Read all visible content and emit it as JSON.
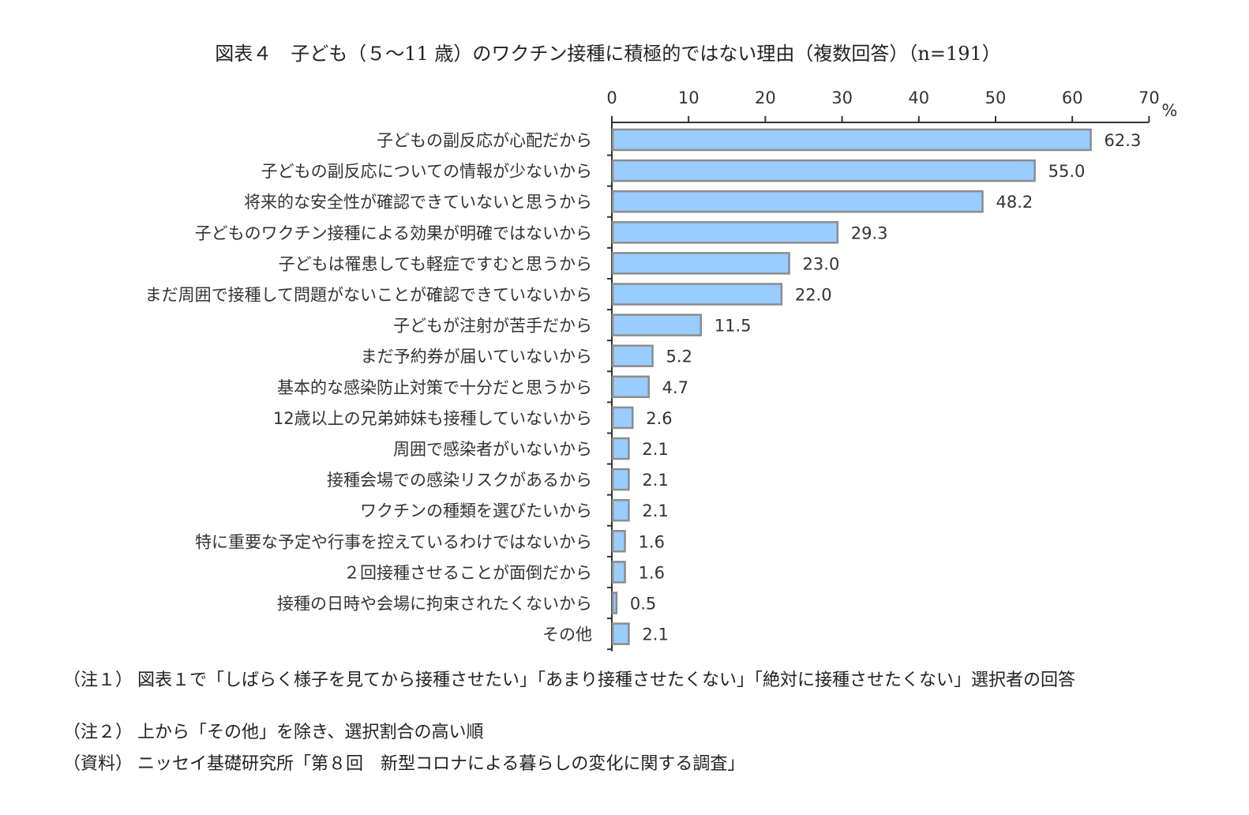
{
  "chart_data": {
    "type": "bar",
    "orientation": "horizontal",
    "title": "図表４　子ども（５～11 歳）のワクチン接種に積極的ではない理由（複数回答）（n=191）",
    "xlabel": "%",
    "xlim": [
      0,
      70
    ],
    "ticks": [
      "0",
      "10",
      "20",
      "30",
      "40",
      "50",
      "60",
      "70"
    ],
    "categories": [
      "子どもの副反応が心配だから",
      "子どもの副反応についての情報が少ないから",
      "将来的な安全性が確認できていないと思うから",
      "子どものワクチン接種による効果が明確ではないから",
      "子どもは罹患しても軽症ですむと思うから",
      "まだ周囲で接種して問題がないことが確認できていないから",
      "子どもが注射が苦手だから",
      "まだ予約券が届いていないから",
      "基本的な感染防止対策で十分だと思うから",
      "12歳以上の兄弟姉妹も接種していないから",
      "周囲で感染者がいないから",
      "接種会場での感染リスクがあるから",
      "ワクチンの種類を選びたいから",
      "特に重要な予定や行事を控えているわけではないから",
      "２回接種させることが面倒だから",
      "接種の日時や会場に拘束されたくないから",
      "その他"
    ],
    "values": [
      62.3,
      55.0,
      48.2,
      29.3,
      23.0,
      22.0,
      11.5,
      5.2,
      4.7,
      2.6,
      2.1,
      2.1,
      2.1,
      1.6,
      1.6,
      0.5,
      2.1
    ],
    "value_labels": [
      "62.3",
      "55.0",
      "48.2",
      "29.3",
      "23.0",
      "22.0",
      "11.5",
      "5.2",
      "4.7",
      "2.6",
      "2.1",
      "2.1",
      "2.1",
      "1.6",
      "1.6",
      "0.5",
      "2.1"
    ],
    "bar_fill": "#99ccff",
    "bar_stroke": "#8c8c8c",
    "legend": "none",
    "grid": false
  },
  "notes": [
    {
      "label": "（注１）",
      "text": "図表１で「しばらく様子を見てから接種させたい」「あまり接種させたくない」「絶対に接種させたくない」選択者の回答"
    },
    {
      "label": "（注２）",
      "text": "上から「その他」を除き、選択割合の高い順"
    }
  ],
  "source": {
    "label": "（資料）",
    "text": "ニッセイ基礎研究所「第８回　新型コロナによる暮らしの変化に関する調査」"
  }
}
